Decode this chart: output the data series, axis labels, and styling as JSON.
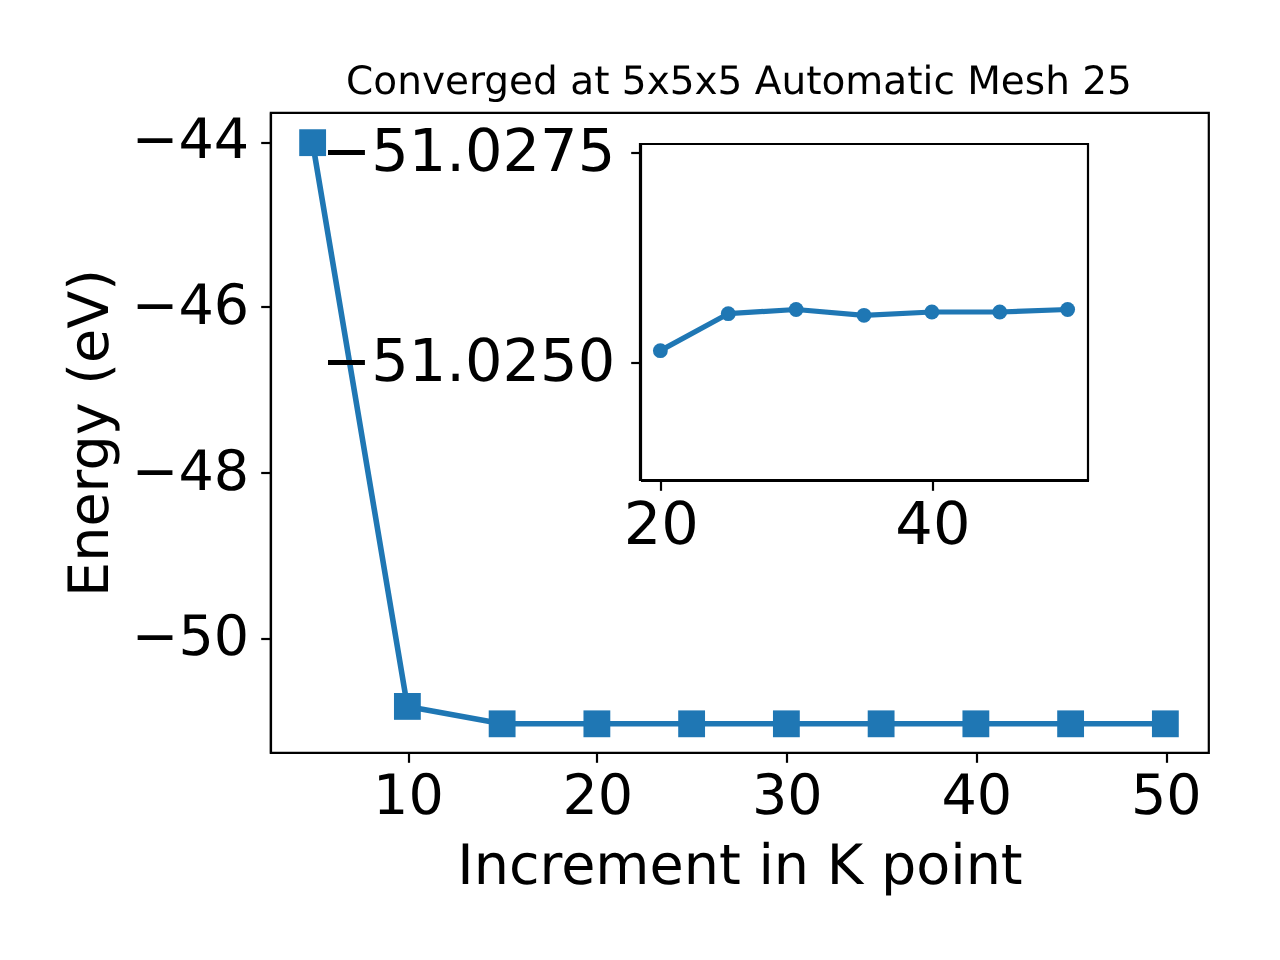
{
  "chart_data": [
    {
      "type": "line",
      "title": "Converged at 5x5x5 Automatic Mesh 25",
      "xlabel": "Increment in K point",
      "ylabel": "Energy (eV)",
      "x": [
        5,
        10,
        15,
        20,
        25,
        30,
        35,
        40,
        45,
        50
      ],
      "series": [
        {
          "color": "#1f77b4",
          "values": [
            -44.02,
            -50.82,
            -51.03,
            -51.03,
            -51.03,
            -51.03,
            -51.03,
            -51.03,
            -51.03,
            -51.03
          ]
        }
      ],
      "xlim": [
        2.75,
        52.25
      ],
      "ylim": [
        -51.37,
        -43.65
      ],
      "xticks": [
        10,
        20,
        30,
        40,
        50
      ],
      "yticks": [
        {
          "value": -50,
          "label": "−50"
        },
        {
          "value": -48,
          "label": "−48"
        },
        {
          "value": -46,
          "label": "−46"
        },
        {
          "value": -44,
          "label": "−44"
        }
      ],
      "marker": "square"
    },
    {
      "type": "line",
      "x": [
        20,
        25,
        30,
        35,
        40,
        45,
        50
      ],
      "series": [
        {
          "color": "#1f77b4",
          "values": [
            -51.02514,
            -51.02558,
            -51.02563,
            -51.02556,
            -51.0256,
            -51.0256,
            -51.02563
          ]
        }
      ],
      "xlim": [
        18.5,
        51.5
      ],
      "ylim": [
        -51.0236,
        -51.0276
      ],
      "xticks": [
        20,
        40
      ],
      "yticks": [
        {
          "value": -51.025,
          "label": "−51.0250"
        },
        {
          "value": -51.0275,
          "label": "−51.0275"
        }
      ],
      "marker": "circle"
    }
  ]
}
